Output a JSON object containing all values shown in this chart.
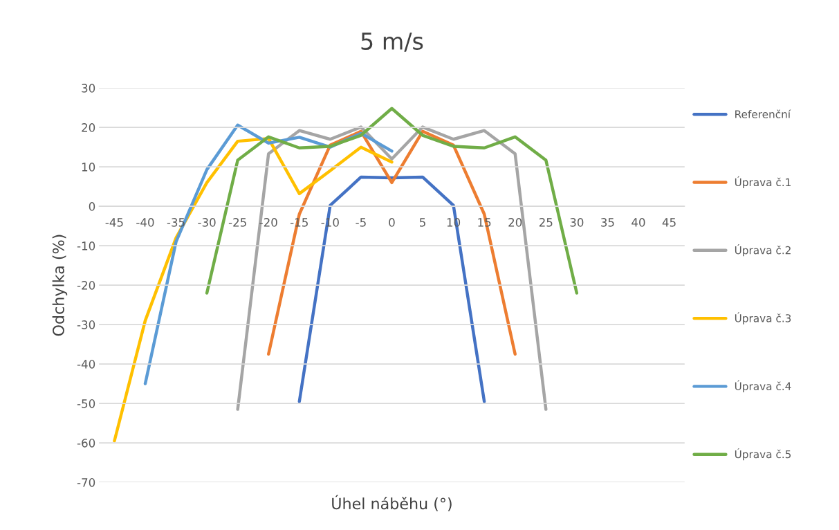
{
  "chart_data": {
    "type": "line",
    "title": "5 m/s",
    "xlabel": "Úhel náběhu (°)",
    "ylabel": "Odchylka (%)",
    "categories": [
      "-45",
      "-40",
      "-35",
      "-30",
      "-25",
      "-20",
      "-15",
      "-10",
      "-5",
      "0",
      "5",
      "10",
      "15",
      "20",
      "25",
      "30",
      "35",
      "40",
      "45"
    ],
    "ylim": [
      -70,
      30
    ],
    "yticks": [
      -70,
      -60,
      -50,
      -40,
      -30,
      -20,
      -10,
      0,
      10,
      20,
      30
    ],
    "grid": "y",
    "legend": "right",
    "marker": "none",
    "line_style": "solid",
    "series": [
      {
        "name": "Referenční",
        "color": "#4472c4",
        "values": [
          null,
          null,
          null,
          null,
          null,
          null,
          -49.5,
          0.2,
          7.4,
          7.2,
          7.4,
          0.2,
          -49.5,
          null,
          null,
          null,
          null,
          null,
          null
        ]
      },
      {
        "name": "Úprava č.1",
        "color": "#ed7d31",
        "values": [
          null,
          null,
          null,
          null,
          null,
          -37.5,
          -2,
          15.5,
          19,
          6,
          19,
          15.5,
          -2,
          -37.5,
          null,
          null,
          null,
          null,
          null
        ]
      },
      {
        "name": "Úprava č.2",
        "color": "#a5a5a5",
        "values": [
          null,
          null,
          null,
          null,
          -51.5,
          13.3,
          19.2,
          17,
          20.1,
          12,
          20.1,
          17,
          19.2,
          13.3,
          -51.5,
          null,
          null,
          null,
          null
        ]
      },
      {
        "name": "Úprava č.3",
        "color": "#ffc000",
        "values": [
          -59.5,
          -29,
          -8,
          6,
          16.5,
          17.2,
          3.2,
          9,
          15,
          11.2,
          null,
          null,
          null,
          null,
          null,
          null,
          null,
          null,
          null
        ]
      },
      {
        "name": "Úprava č.4",
        "color": "#5b9bd5",
        "values": [
          null,
          -45,
          -9,
          9.3,
          20.6,
          16,
          17.5,
          15,
          18.5,
          14,
          null,
          null,
          null,
          null,
          null,
          null,
          null,
          null,
          null
        ]
      },
      {
        "name": "Úprava č.5",
        "color": "#70ad47",
        "values": [
          null,
          null,
          null,
          -22,
          11.7,
          17.6,
          14.8,
          15.2,
          18,
          24.8,
          18,
          15.2,
          14.8,
          17.6,
          11.7,
          -22,
          null,
          null,
          null
        ]
      }
    ]
  }
}
